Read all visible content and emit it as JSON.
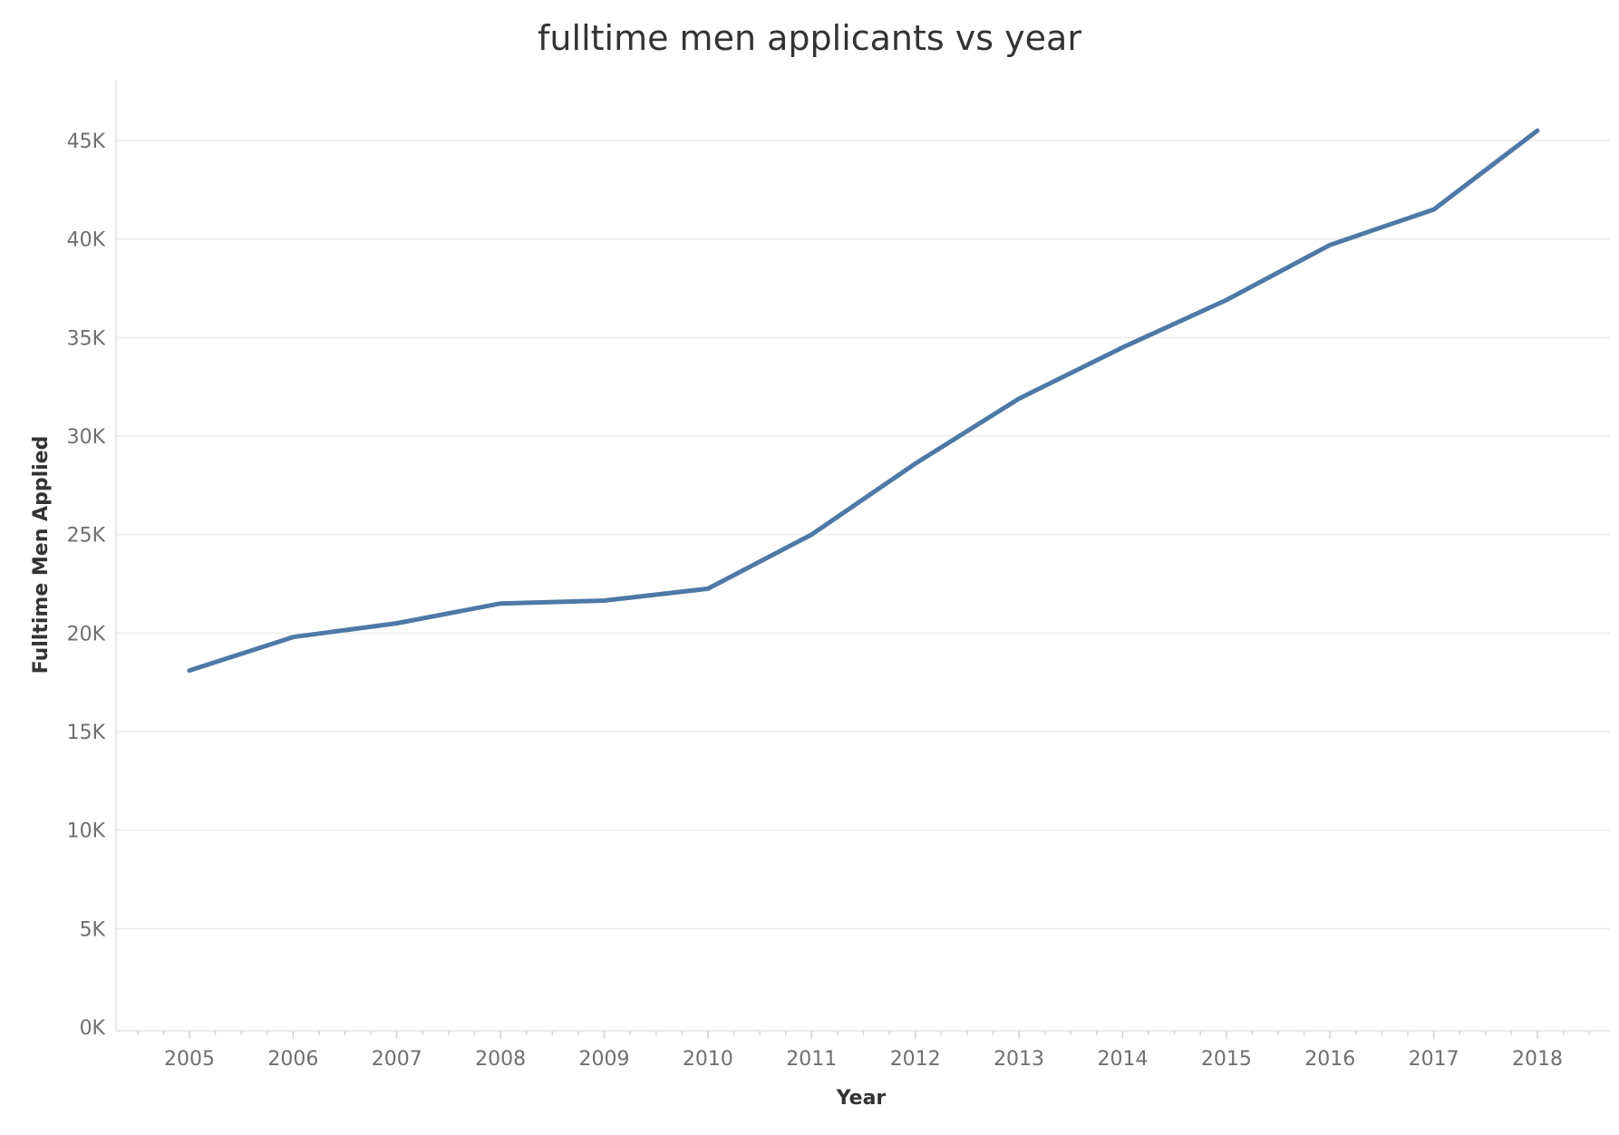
{
  "chart_data": {
    "type": "line",
    "title": "fulltime men applicants vs year",
    "xlabel": "Year",
    "ylabel": "Fulltime Men Applied",
    "x": [
      "2005",
      "2006",
      "2007",
      "2008",
      "2009",
      "2010",
      "2011",
      "2012",
      "2013",
      "2014",
      "2015",
      "2016",
      "2017",
      "2018"
    ],
    "series": [
      {
        "values": [
          18100,
          19800,
          20500,
          21500,
          21650,
          22250,
          25000,
          28600,
          31900,
          34500,
          36900,
          39700,
          41500,
          45500
        ]
      }
    ],
    "ylim": [
      0,
      47500
    ],
    "yticks": [
      {
        "value": 0,
        "label": "0K"
      },
      {
        "value": 5000,
        "label": "5K"
      },
      {
        "value": 10000,
        "label": "10K"
      },
      {
        "value": 15000,
        "label": "15K"
      },
      {
        "value": 20000,
        "label": "20K"
      },
      {
        "value": 25000,
        "label": "25K"
      },
      {
        "value": 30000,
        "label": "30K"
      },
      {
        "value": 35000,
        "label": "35K"
      },
      {
        "value": 40000,
        "label": "40K"
      },
      {
        "value": 45000,
        "label": "45K"
      }
    ],
    "grid": true,
    "line_color": "#4e79a7"
  }
}
